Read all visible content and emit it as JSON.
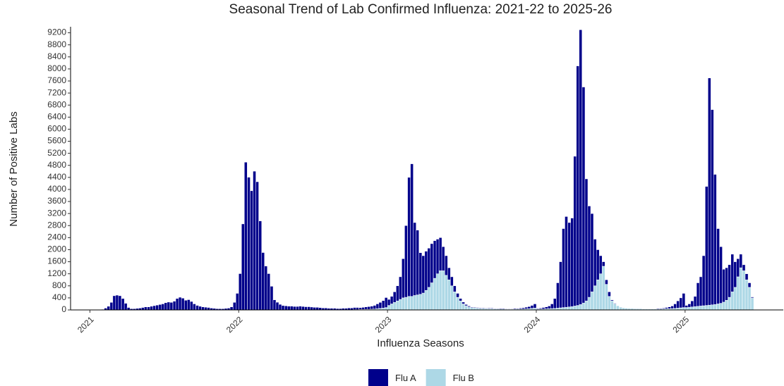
{
  "chart_data": {
    "type": "stacked_bar",
    "title": "Seasonal Trend of Lab Confirmed Influenza: 2021-22 to 2025-26",
    "x_label": "Influenza Seasons",
    "y_label": "Number of Positive Labs",
    "xlim": [
      2020.87,
      2025.66
    ],
    "xticks": [
      2021,
      2022,
      2023,
      2024,
      2025
    ],
    "ylim": [
      0,
      9400
    ],
    "yticks": [
      0,
      400,
      800,
      1200,
      1600,
      2000,
      2400,
      2800,
      3200,
      3600,
      4000,
      4400,
      4800,
      5200,
      5600,
      6000,
      6400,
      6800,
      7200,
      7600,
      8000,
      8400,
      8800,
      9200
    ],
    "grid": false,
    "legend": "bottom",
    "x": [
      2021,
      2021.019,
      2021.038,
      2021.058,
      2021.077,
      2021.096,
      2021.115,
      2021.135,
      2021.154,
      2021.173,
      2021.192,
      2021.212,
      2021.231,
      2021.25,
      2021.269,
      2021.288,
      2021.308,
      2021.327,
      2021.346,
      2021.365,
      2021.385,
      2021.404,
      2021.423,
      2021.442,
      2021.462,
      2021.481,
      2021.5,
      2021.519,
      2021.538,
      2021.558,
      2021.577,
      2021.596,
      2021.615,
      2021.635,
      2021.654,
      2021.673,
      2021.692,
      2021.712,
      2021.731,
      2021.75,
      2021.769,
      2021.788,
      2021.808,
      2021.827,
      2021.846,
      2021.865,
      2021.885,
      2021.904,
      2021.923,
      2021.942,
      2021.962,
      2021.981,
      2022,
      2022.019,
      2022.038,
      2022.058,
      2022.077,
      2022.096,
      2022.115,
      2022.135,
      2022.154,
      2022.173,
      2022.192,
      2022.212,
      2022.231,
      2022.25,
      2022.269,
      2022.288,
      2022.308,
      2022.327,
      2022.346,
      2022.365,
      2022.385,
      2022.404,
      2022.423,
      2022.442,
      2022.462,
      2022.481,
      2022.5,
      2022.519,
      2022.538,
      2022.558,
      2022.577,
      2022.596,
      2022.615,
      2022.635,
      2022.654,
      2022.673,
      2022.692,
      2022.712,
      2022.731,
      2022.75,
      2022.769,
      2022.788,
      2022.808,
      2022.827,
      2022.846,
      2022.865,
      2022.885,
      2022.904,
      2022.923,
      2022.942,
      2022.962,
      2022.981,
      2023,
      2023.019,
      2023.038,
      2023.058,
      2023.077,
      2023.096,
      2023.115,
      2023.135,
      2023.154,
      2023.173,
      2023.192,
      2023.212,
      2023.231,
      2023.25,
      2023.269,
      2023.288,
      2023.308,
      2023.327,
      2023.346,
      2023.365,
      2023.385,
      2023.404,
      2023.423,
      2023.442,
      2023.462,
      2023.481,
      2023.5,
      2023.519,
      2023.538,
      2023.558,
      2023.577,
      2023.596,
      2023.615,
      2023.635,
      2023.654,
      2023.673,
      2023.692,
      2023.712,
      2023.731,
      2023.75,
      2023.769,
      2023.788,
      2023.808,
      2023.827,
      2023.846,
      2023.865,
      2023.885,
      2023.904,
      2023.923,
      2023.942,
      2023.962,
      2023.981,
      2024,
      2024.019,
      2024.038,
      2024.058,
      2024.077,
      2024.096,
      2024.115,
      2024.135,
      2024.154,
      2024.173,
      2024.192,
      2024.212,
      2024.231,
      2024.25,
      2024.269,
      2024.288,
      2024.308,
      2024.327,
      2024.346,
      2024.365,
      2024.385,
      2024.404,
      2024.423,
      2024.442,
      2024.462,
      2024.481,
      2024.5,
      2024.519,
      2024.538,
      2024.558,
      2024.577,
      2024.596,
      2024.615,
      2024.635,
      2024.654,
      2024.673,
      2024.692,
      2024.712,
      2024.731,
      2024.75,
      2024.769,
      2024.788,
      2024.808,
      2024.827,
      2024.846,
      2024.865,
      2024.885,
      2024.904,
      2024.923,
      2024.942,
      2024.962,
      2024.981,
      2025,
      2025.019,
      2025.038,
      2025.058,
      2025.077,
      2025.096,
      2025.115,
      2025.135,
      2025.154,
      2025.173,
      2025.192,
      2025.212,
      2025.231,
      2025.25,
      2025.269,
      2025.288,
      2025.308,
      2025.327,
      2025.346,
      2025.365,
      2025.385,
      2025.404,
      2025.423,
      2025.442
    ],
    "series": [
      {
        "name": "Flu A",
        "color": "#00008b",
        "values": [
          0,
          0,
          0,
          5,
          20,
          60,
          120,
          250,
          470,
          490,
          470,
          380,
          220,
          80,
          40,
          40,
          50,
          60,
          80,
          100,
          100,
          120,
          140,
          160,
          180,
          200,
          240,
          260,
          250,
          290,
          380,
          420,
          390,
          320,
          340,
          280,
          200,
          150,
          120,
          100,
          90,
          80,
          60,
          50,
          40,
          40,
          40,
          50,
          60,
          100,
          250,
          550,
          1200,
          2850,
          4900,
          4400,
          3950,
          4600,
          4250,
          2950,
          1900,
          1450,
          1200,
          780,
          330,
          250,
          180,
          140,
          130,
          120,
          120,
          110,
          110,
          120,
          110,
          100,
          100,
          90,
          80,
          80,
          70,
          60,
          60,
          50,
          50,
          50,
          40,
          40,
          50,
          50,
          60,
          60,
          70,
          70,
          60,
          70,
          80,
          90,
          100,
          120,
          160,
          200,
          250,
          330,
          200,
          250,
          350,
          500,
          750,
          1300,
          2380,
          3950,
          4400,
          2420,
          2150,
          1380,
          1240,
          1300,
          1300,
          1300,
          1250,
          1150,
          1100,
          800,
          650,
          400,
          300,
          200,
          130,
          80,
          60,
          40,
          30,
          20,
          20,
          20,
          20,
          20,
          15,
          20,
          20,
          15,
          15,
          20,
          20,
          15,
          15,
          15,
          25,
          20,
          30,
          40,
          55,
          70,
          100,
          140,
          20,
          30,
          50,
          65,
          90,
          155,
          330,
          840,
          1530,
          2620,
          3010,
          2800,
          2940,
          4970,
          7950,
          9120,
          7170,
          4050,
          3030,
          2600,
          1550,
          1000,
          600,
          150,
          150,
          150,
          30,
          20,
          10,
          10,
          10,
          10,
          10,
          10,
          10,
          10,
          10,
          10,
          10,
          10,
          10,
          10,
          20,
          20,
          25,
          40,
          60,
          85,
          150,
          240,
          330,
          470,
          70,
          110,
          200,
          340,
          780,
          970,
          1660,
          3950,
          7540,
          6480,
          4320,
          2500,
          1880,
          1090,
          1080,
          1080,
          1250,
          850,
          600,
          450,
          200,
          200,
          150,
          30
        ]
      },
      {
        "name": "Flu B",
        "color": "#add8e6",
        "values": [
          0,
          0,
          0,
          0,
          0,
          0,
          0,
          0,
          0,
          0,
          0,
          0,
          0,
          0,
          0,
          0,
          0,
          0,
          0,
          0,
          0,
          0,
          0,
          0,
          0,
          0,
          0,
          0,
          0,
          0,
          0,
          0,
          0,
          0,
          0,
          0,
          0,
          0,
          0,
          0,
          0,
          0,
          0,
          0,
          0,
          0,
          0,
          0,
          0,
          0,
          0,
          0,
          5,
          5,
          5,
          5,
          5,
          5,
          5,
          5,
          5,
          5,
          5,
          5,
          5,
          5,
          5,
          5,
          5,
          5,
          5,
          5,
          5,
          5,
          5,
          5,
          5,
          5,
          5,
          5,
          5,
          5,
          5,
          5,
          5,
          5,
          5,
          5,
          5,
          5,
          5,
          5,
          10,
          10,
          15,
          15,
          20,
          20,
          25,
          30,
          40,
          50,
          60,
          80,
          150,
          200,
          250,
          300,
          350,
          400,
          420,
          450,
          450,
          480,
          500,
          520,
          560,
          650,
          750,
          900,
          1050,
          1200,
          1300,
          1300,
          1150,
          1000,
          800,
          600,
          420,
          300,
          200,
          140,
          100,
          80,
          70,
          60,
          50,
          50,
          45,
          40,
          40,
          35,
          35,
          30,
          30,
          25,
          25,
          25,
          25,
          30,
          30,
          30,
          35,
          40,
          50,
          60,
          30,
          30,
          30,
          35,
          40,
          45,
          50,
          60,
          70,
          80,
          90,
          100,
          110,
          130,
          150,
          180,
          230,
          300,
          420,
          600,
          800,
          1000,
          1200,
          1450,
          850,
          450,
          300,
          200,
          140,
          90,
          70,
          60,
          50,
          50,
          40,
          40,
          40,
          30,
          30,
          30,
          30,
          30,
          30,
          30,
          35,
          40,
          40,
          45,
          50,
          60,
          70,
          80,
          80,
          90,
          100,
          110,
          120,
          130,
          140,
          150,
          160,
          170,
          180,
          200,
          220,
          260,
          320,
          420,
          600,
          750,
          1100,
          1400,
          1300,
          1000,
          750,
          400
        ]
      }
    ]
  }
}
